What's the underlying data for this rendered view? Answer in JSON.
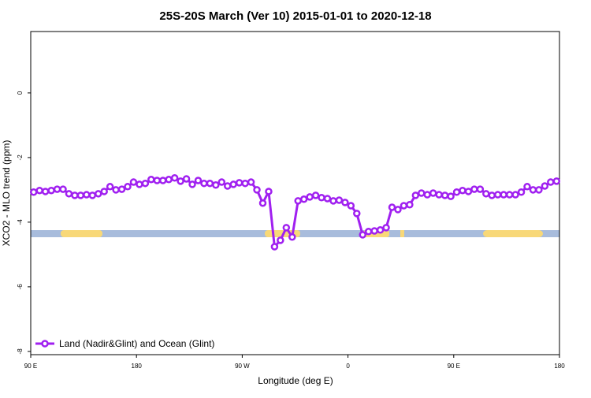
{
  "chart_data": {
    "type": "line",
    "title": "25S-20S March (Ver 10)   2015-01-01 to 2020-12-18",
    "x_label": "Longitude (deg E)",
    "y_label": "XCO2 - MLO trend (ppm)",
    "xlim": [
      90,
      540
    ],
    "xticks": [
      {
        "value": 90,
        "label": "90 E"
      },
      180,
      {
        "value": 270,
        "label": "90 W"
      },
      {
        "value": 360,
        "label": "0"
      },
      {
        "value": 450,
        "label": "90 E"
      },
      {
        "value": 540,
        "label": "180"
      }
    ],
    "ylim": [
      -8.1,
      1.9
    ],
    "yticks": [
      0,
      -2,
      -4,
      -6,
      -8
    ],
    "legend": "bottom-left",
    "x": [
      92.5,
      97.5,
      102.5,
      107.5,
      112.5,
      117.5,
      122.5,
      127.5,
      132.5,
      137.5,
      142.5,
      147.5,
      152.5,
      157.5,
      162.5,
      167.5,
      172.5,
      177.5,
      182.5,
      187.5,
      192.5,
      197.5,
      202.5,
      207.5,
      212.5,
      217.5,
      222.5,
      227.5,
      232.5,
      237.5,
      242.5,
      247.5,
      252.5,
      257.5,
      262.5,
      267.5,
      272.5,
      277.5,
      282.5,
      287.5,
      292.5,
      297.5,
      302.5,
      307.5,
      312.5,
      317.5,
      322.5,
      327.5,
      332.5,
      337.5,
      342.5,
      347.5,
      352.5,
      357.5,
      362.5,
      367.5,
      372.5,
      377.5,
      382.5,
      387.5,
      392.5,
      397.5,
      402.5,
      407.5,
      412.5,
      417.5,
      422.5,
      427.5,
      432.5,
      437.5,
      442.5,
      447.5,
      452.5,
      457.5,
      462.5,
      467.5,
      472.5,
      477.5,
      482.5,
      487.5,
      492.5,
      497.5,
      502.5,
      507.5,
      512.5,
      517.5,
      522.5,
      527.5,
      532.5,
      537.5
    ],
    "series": [
      {
        "name": "Land (Nadir&Glint) and Ocean (Glint)",
        "color": "#a020f0",
        "values": [
          -3.07,
          -3.02,
          -3.05,
          -3.02,
          -2.98,
          -2.98,
          -3.12,
          -3.17,
          -3.17,
          -3.15,
          -3.17,
          -3.12,
          -3.05,
          -2.9,
          -3.0,
          -2.98,
          -2.9,
          -2.76,
          -2.83,
          -2.8,
          -2.68,
          -2.71,
          -2.71,
          -2.68,
          -2.63,
          -2.73,
          -2.66,
          -2.83,
          -2.71,
          -2.8,
          -2.8,
          -2.85,
          -2.76,
          -2.88,
          -2.83,
          -2.78,
          -2.8,
          -2.76,
          -3.0,
          -3.41,
          -3.05,
          -4.76,
          -4.56,
          -4.17,
          -4.46,
          -3.34,
          -3.29,
          -3.22,
          -3.17,
          -3.24,
          -3.27,
          -3.34,
          -3.32,
          -3.39,
          -3.49,
          -3.73,
          -4.39,
          -4.29,
          -4.27,
          -4.24,
          -4.17,
          -3.54,
          -3.61,
          -3.49,
          -3.46,
          -3.17,
          -3.1,
          -3.15,
          -3.1,
          -3.15,
          -3.17,
          -3.2,
          -3.07,
          -3.02,
          -3.05,
          -2.98,
          -2.98,
          -3.12,
          -3.17,
          -3.15,
          -3.15,
          -3.15,
          -3.15,
          -3.07,
          -2.9,
          -3.0,
          -3.0,
          -2.88,
          -2.76,
          -2.73
        ]
      }
    ]
  }
}
